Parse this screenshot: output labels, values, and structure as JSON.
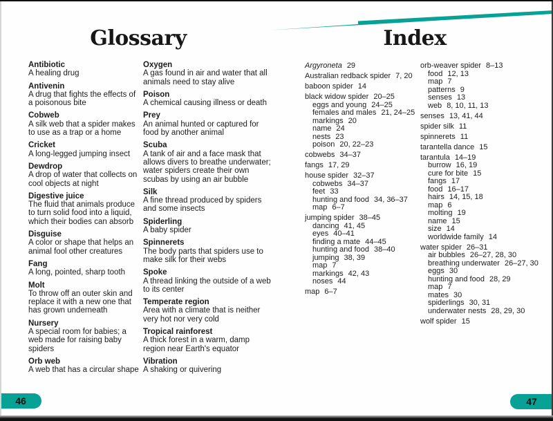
{
  "colors": {
    "teal": "#07A295",
    "text": "#1b1b1b"
  },
  "glossary": {
    "title": "Glossary",
    "page_number": "46",
    "columns": [
      [
        {
          "term": "Antibiotic",
          "definition": "A healing drug"
        },
        {
          "term": "Antivenin",
          "definition": "A drug that fights the effects of a poisonous bite"
        },
        {
          "term": "Cobweb",
          "definition": "A silk web that a spider makes to use as a trap or a home"
        },
        {
          "term": "Cricket",
          "definition": "A long-legged jumping insect"
        },
        {
          "term": "Dewdrop",
          "definition": "A drop of water that collects on cool objects at night"
        },
        {
          "term": "Digestive juice",
          "definition": "The fluid that animals produce to turn solid food into a liquid, which their bodies can absorb"
        },
        {
          "term": "Disguise",
          "definition": "A color or shape that helps an animal fool other creatures"
        },
        {
          "term": "Fang",
          "definition": "A long, pointed, sharp tooth"
        },
        {
          "term": "Molt",
          "definition": "To throw off an outer skin and replace it with a new one that has grown underneath"
        },
        {
          "term": "Nursery",
          "definition": "A special room for babies; a web made for raising baby spiders"
        },
        {
          "term": "Orb web",
          "definition": "A web that has a circular shape"
        }
      ],
      [
        {
          "term": "Oxygen",
          "definition": "A gas found in air and water that all animals need to stay alive"
        },
        {
          "term": "Poison",
          "definition": "A chemical causing illness or death"
        },
        {
          "term": "Prey",
          "definition": "An animal hunted or captured for food by another animal"
        },
        {
          "term": "Scuba",
          "definition": "A tank of air and a face mask that allows divers to breathe underwater; water spiders create their own scubas by using an air bubble"
        },
        {
          "term": "Silk",
          "definition": "A fine thread produced by spiders and some insects"
        },
        {
          "term": "Spiderling",
          "definition": "A baby spider"
        },
        {
          "term": "Spinnerets",
          "definition": "The body parts that spiders use to make silk for their webs"
        },
        {
          "term": "Spoke",
          "definition": "A thread linking the outside of a web to its center"
        },
        {
          "term": "Temperate region",
          "definition": "Area with a climate that is neither very hot nor very cold"
        },
        {
          "term": "Tropical rainforest",
          "definition": "A thick forest in a warm, damp region near Earth's equator"
        },
        {
          "term": "Vibration",
          "definition": "A shaking or quivering"
        }
      ]
    ]
  },
  "index": {
    "title": "Index",
    "page_number": "47",
    "columns": [
      [
        {
          "label": "Argyroneta",
          "pages": "29",
          "italic": true,
          "sub": false
        },
        {
          "label": "Australian redback spider",
          "pages": "7, 20",
          "sub": false
        },
        {
          "label": "baboon spider",
          "pages": "14",
          "sub": false
        },
        {
          "label": "black widow spider",
          "pages": "20–25",
          "sub": false
        },
        {
          "label": "eggs and young",
          "pages": "24–25",
          "sub": true
        },
        {
          "label": "females and males",
          "pages": "21, 24–25",
          "sub": true
        },
        {
          "label": "markings",
          "pages": "20",
          "sub": true
        },
        {
          "label": "name",
          "pages": "24",
          "sub": true
        },
        {
          "label": "nests",
          "pages": "23",
          "sub": true
        },
        {
          "label": "poison",
          "pages": "20, 22–23",
          "sub": true
        },
        {
          "label": "cobwebs",
          "pages": "34–37",
          "sub": false
        },
        {
          "label": "fangs",
          "pages": "17, 29",
          "sub": false
        },
        {
          "label": "house spider",
          "pages": "32–37",
          "sub": false
        },
        {
          "label": "cobwebs",
          "pages": "34–37",
          "sub": true
        },
        {
          "label": "feet",
          "pages": "33",
          "sub": true
        },
        {
          "label": "hunting and food",
          "pages": "34, 36–37",
          "sub": true
        },
        {
          "label": "map",
          "pages": "6–7",
          "sub": true
        },
        {
          "label": "jumping spider",
          "pages": "38–45",
          "sub": false
        },
        {
          "label": "dancing",
          "pages": "41, 45",
          "sub": true
        },
        {
          "label": "eyes",
          "pages": "40–41",
          "sub": true
        },
        {
          "label": "finding a mate",
          "pages": "44–45",
          "sub": true
        },
        {
          "label": "hunting and food",
          "pages": "38–40",
          "sub": true
        },
        {
          "label": "jumping",
          "pages": "38, 39",
          "sub": true
        },
        {
          "label": "map",
          "pages": "7",
          "sub": true
        },
        {
          "label": "markings",
          "pages": "42, 43",
          "sub": true
        },
        {
          "label": "noses",
          "pages": "44",
          "sub": true
        },
        {
          "label": "map",
          "pages": "6–7",
          "sub": false
        }
      ],
      [
        {
          "label": "orb-weaver spider",
          "pages": "8–13",
          "sub": false
        },
        {
          "label": "food",
          "pages": "12, 13",
          "sub": true
        },
        {
          "label": "map",
          "pages": "7",
          "sub": true
        },
        {
          "label": "patterns",
          "pages": "9",
          "sub": true
        },
        {
          "label": "senses",
          "pages": "13",
          "sub": true
        },
        {
          "label": "web",
          "pages": "8, 10, 11, 13",
          "sub": true
        },
        {
          "label": "senses",
          "pages": "13, 41, 44",
          "sub": false
        },
        {
          "label": "spider silk",
          "pages": "11",
          "sub": false
        },
        {
          "label": "spinnerets",
          "pages": "11",
          "sub": false
        },
        {
          "label": "tarantella dance",
          "pages": "15",
          "sub": false
        },
        {
          "label": "tarantula",
          "pages": "14–19",
          "sub": false
        },
        {
          "label": "burrow",
          "pages": "16, 19",
          "sub": true
        },
        {
          "label": "cure for bite",
          "pages": "15",
          "sub": true
        },
        {
          "label": "fangs",
          "pages": "17",
          "sub": true
        },
        {
          "label": "food",
          "pages": "16–17",
          "sub": true
        },
        {
          "label": "hairs",
          "pages": "14, 15, 18",
          "sub": true
        },
        {
          "label": "map",
          "pages": "6",
          "sub": true
        },
        {
          "label": "molting",
          "pages": "19",
          "sub": true
        },
        {
          "label": "name",
          "pages": "15",
          "sub": true
        },
        {
          "label": "size",
          "pages": "14",
          "sub": true
        },
        {
          "label": "worldwide family",
          "pages": "14",
          "sub": true
        },
        {
          "label": "water spider",
          "pages": "26–31",
          "sub": false
        },
        {
          "label": "air bubbles",
          "pages": "26–27, 28, 30",
          "sub": true
        },
        {
          "label": "breathing underwater",
          "pages": "26–27, 30",
          "sub": true
        },
        {
          "label": "eggs",
          "pages": "30",
          "sub": true
        },
        {
          "label": "hunting and food",
          "pages": "28, 29",
          "sub": true
        },
        {
          "label": "map",
          "pages": "7",
          "sub": true
        },
        {
          "label": "mates",
          "pages": "30",
          "sub": true
        },
        {
          "label": "spiderlings",
          "pages": "30, 31",
          "sub": true
        },
        {
          "label": "underwater nests",
          "pages": "28, 29, 30",
          "sub": true
        },
        {
          "label": "wolf spider",
          "pages": "15",
          "sub": false
        }
      ]
    ]
  }
}
